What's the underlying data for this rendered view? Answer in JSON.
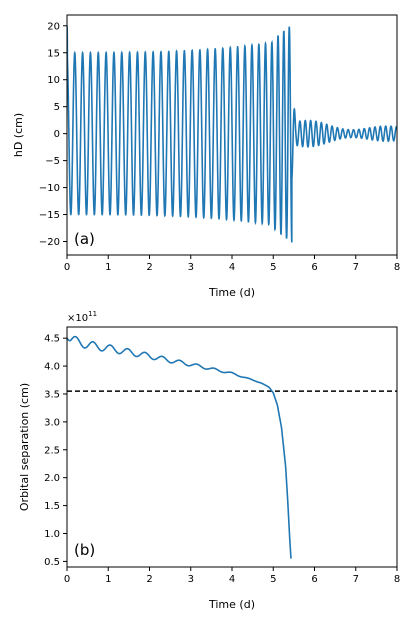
{
  "chart_data": [
    {
      "type": "line",
      "panel_label": "(a)",
      "xlabel": "Time (d)",
      "ylabel": "hD (cm)",
      "xlim": [
        0,
        8
      ],
      "ylim": [
        -22.5,
        22
      ],
      "xticks": [
        "0",
        "1",
        "2",
        "3",
        "4",
        "5",
        "6",
        "7",
        "8"
      ],
      "yticks": [
        "−20",
        "−15",
        "−10",
        "−5",
        "0",
        "5",
        "10",
        "15",
        "20"
      ],
      "color": "#1f77b4",
      "grid": false,
      "description_values": {
        "inspiral_period_d": 0.19,
        "amplitude_start": 15.0,
        "amplitude_at_5d": 17.5,
        "peak_before_merger": 20.2,
        "min_before_merger": -20.8,
        "merger_time_d": 5.45,
        "ringdown_amplitude": 2.5
      }
    },
    {
      "type": "line",
      "panel_label": "(b)",
      "xlabel": "Time (d)",
      "ylabel": "Orbital separation (cm)",
      "offset_text": "×10",
      "offset_exponent": "11",
      "xlim": [
        0,
        8
      ],
      "ylim": [
        0.4,
        4.7
      ],
      "xticks": [
        "0",
        "1",
        "2",
        "3",
        "4",
        "5",
        "6",
        "7",
        "8"
      ],
      "yticks": [
        "0.5",
        "1.0",
        "1.5",
        "2.0",
        "2.5",
        "3.0",
        "3.5",
        "4.0",
        "4.5"
      ],
      "color": "#1f77b4",
      "reference_line": {
        "y": 3.55,
        "style": "dashed",
        "color": "#000000"
      },
      "grid": false,
      "x": [
        0.0,
        0.5,
        1.0,
        1.5,
        2.0,
        2.5,
        3.0,
        3.5,
        4.0,
        4.5,
        4.7,
        4.9,
        5.0,
        5.1,
        5.2,
        5.3,
        5.35,
        5.4,
        5.43
      ],
      "y": [
        4.5,
        4.38,
        4.32,
        4.25,
        4.18,
        4.1,
        4.03,
        3.95,
        3.87,
        3.75,
        3.7,
        3.62,
        3.52,
        3.3,
        2.9,
        2.2,
        1.6,
        0.9,
        0.55
      ],
      "oscillation_amplitude": 0.08,
      "oscillation_period_d": 0.42
    }
  ]
}
